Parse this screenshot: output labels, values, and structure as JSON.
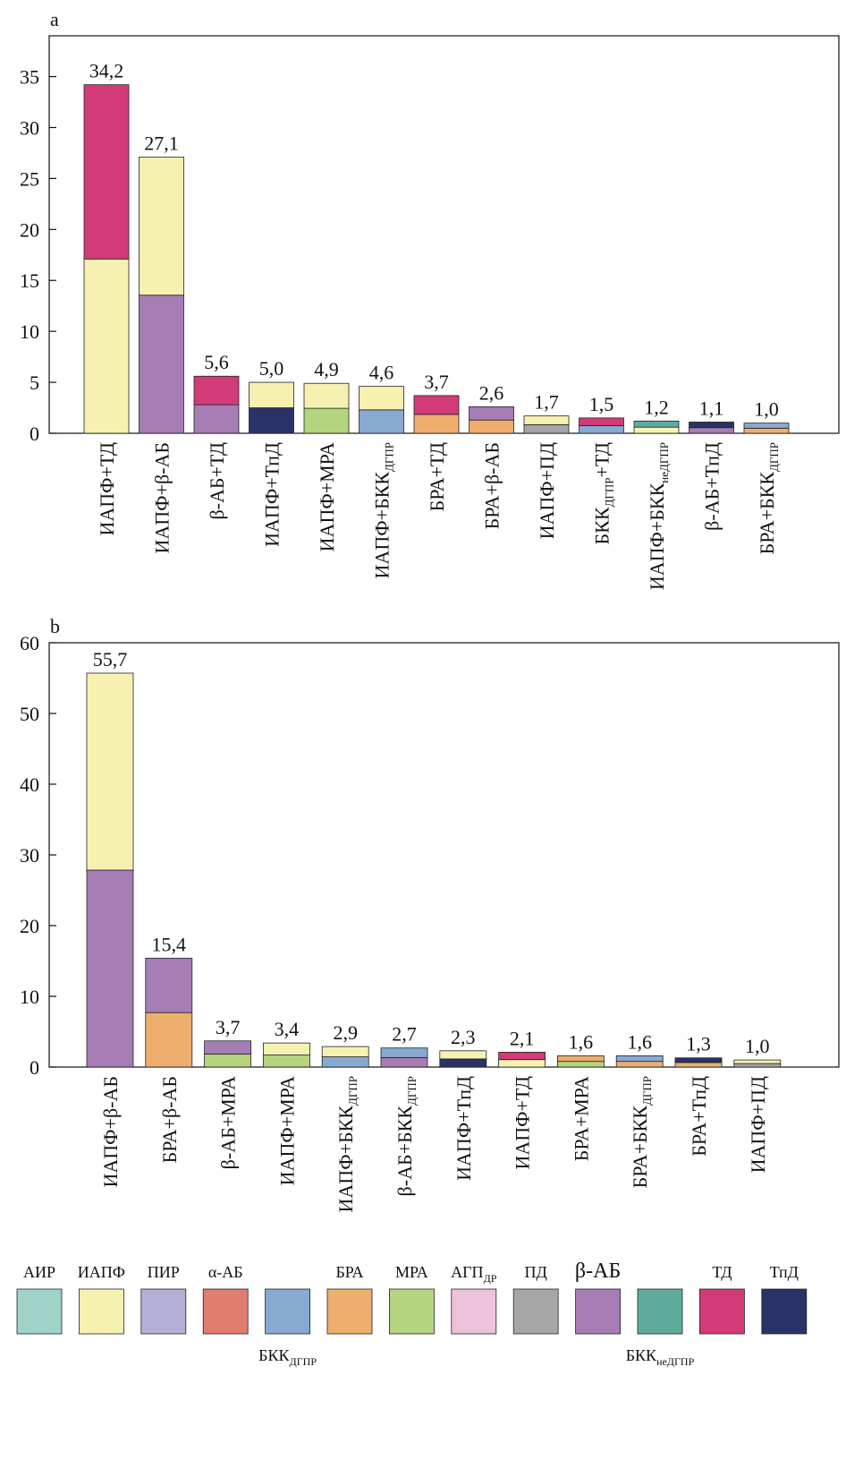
{
  "colors": {
    "АИР": "#9fd3c7",
    "ИАПФ": "#f6f1b0",
    "ПИР": "#b3afd6",
    "α-АБ": "#e07d6e",
    "БКК_ДГПР": "#88a9d0",
    "БРА": "#eeae6d",
    "МРА": "#b4d47e",
    "АГП_ДР": "#ecc3da",
    "ПД": "#a6a6a6",
    "β-АБ": "#a67db5",
    "БКК_неДГПР": "#5eab9e",
    "ТД": "#d23a78",
    "ТпД": "#2a3368"
  },
  "chart_data": [
    {
      "type": "bar",
      "stacked": true,
      "panel_label": "a",
      "ylim": [
        0,
        39
      ],
      "yticks": [
        0,
        5,
        10,
        15,
        20,
        25,
        30,
        35
      ],
      "categories": [
        {
          "parts": [
            {
              "t": "ИАПФ+ТД"
            }
          ],
          "total": "34,2",
          "value": 34.2,
          "segments": [
            {
              "drug": "ИАПФ",
              "value": 17.1
            },
            {
              "drug": "ТД",
              "value": 17.1
            }
          ]
        },
        {
          "parts": [
            {
              "t": "ИАПФ+β-АБ"
            }
          ],
          "total": "27,1",
          "value": 27.1,
          "segments": [
            {
              "drug": "β-АБ",
              "value": 13.55
            },
            {
              "drug": "ИАПФ",
              "value": 13.55
            }
          ]
        },
        {
          "parts": [
            {
              "t": "β-АБ+ТД"
            }
          ],
          "total": "5,6",
          "value": 5.6,
          "segments": [
            {
              "drug": "β-АБ",
              "value": 2.8
            },
            {
              "drug": "ТД",
              "value": 2.8
            }
          ]
        },
        {
          "parts": [
            {
              "t": "ИАПФ+ТпД"
            }
          ],
          "total": "5,0",
          "value": 5.0,
          "segments": [
            {
              "drug": "ТпД",
              "value": 2.5
            },
            {
              "drug": "ИАПФ",
              "value": 2.5
            }
          ]
        },
        {
          "parts": [
            {
              "t": "ИАПФ+МРА"
            }
          ],
          "total": "4,9",
          "value": 4.9,
          "segments": [
            {
              "drug": "МРА",
              "value": 2.45
            },
            {
              "drug": "ИАПФ",
              "value": 2.45
            }
          ]
        },
        {
          "parts": [
            {
              "t": "ИАПФ+БКК"
            },
            {
              "t": "ДГПР",
              "sub": true
            }
          ],
          "total": "4,6",
          "value": 4.6,
          "segments": [
            {
              "drug": "БКК_ДГПР",
              "value": 2.3
            },
            {
              "drug": "ИАПФ",
              "value": 2.3
            }
          ]
        },
        {
          "parts": [
            {
              "t": "БРА+ТД"
            }
          ],
          "total": "3,7",
          "value": 3.7,
          "segments": [
            {
              "drug": "БРА",
              "value": 1.85
            },
            {
              "drug": "ТД",
              "value": 1.85
            }
          ]
        },
        {
          "parts": [
            {
              "t": "БРА+β-АБ"
            }
          ],
          "total": "2,6",
          "value": 2.6,
          "segments": [
            {
              "drug": "БРА",
              "value": 1.3
            },
            {
              "drug": "β-АБ",
              "value": 1.3
            }
          ]
        },
        {
          "parts": [
            {
              "t": "ИАПФ+ПД"
            }
          ],
          "total": "1,7",
          "value": 1.7,
          "segments": [
            {
              "drug": "ПД",
              "value": 0.85
            },
            {
              "drug": "ИАПФ",
              "value": 0.85
            }
          ]
        },
        {
          "parts": [
            {
              "t": "БКК"
            },
            {
              "t": "ДГПР",
              "sub": true
            },
            {
              "t": "+ТД"
            }
          ],
          "total": "1,5",
          "value": 1.5,
          "segments": [
            {
              "drug": "БКК_ДГПР",
              "value": 0.75
            },
            {
              "drug": "ТД",
              "value": 0.75
            }
          ]
        },
        {
          "parts": [
            {
              "t": "ИАПФ+БКК"
            },
            {
              "t": "неДГПР",
              "sub": true
            }
          ],
          "total": "1,2",
          "value": 1.2,
          "segments": [
            {
              "drug": "ИАПФ",
              "value": 0.6
            },
            {
              "drug": "БКК_неДГПР",
              "value": 0.6
            }
          ]
        },
        {
          "parts": [
            {
              "t": "β-АБ+ТпД"
            }
          ],
          "total": "1,1",
          "value": 1.1,
          "segments": [
            {
              "drug": "β-АБ",
              "value": 0.55
            },
            {
              "drug": "ТпД",
              "value": 0.55
            }
          ]
        },
        {
          "parts": [
            {
              "t": "БРА+БКК"
            },
            {
              "t": "ДГПР",
              "sub": true
            }
          ],
          "total": "1,0",
          "value": 1.0,
          "segments": [
            {
              "drug": "БРА",
              "value": 0.5
            },
            {
              "drug": "БКК_ДГПР",
              "value": 0.5
            }
          ]
        }
      ]
    },
    {
      "type": "bar",
      "stacked": true,
      "panel_label": "b",
      "ylim": [
        0,
        60
      ],
      "yticks": [
        0,
        10,
        20,
        30,
        40,
        50,
        60
      ],
      "categories": [
        {
          "parts": [
            {
              "t": "ИАПФ+β-АБ"
            }
          ],
          "total": "55,7",
          "value": 55.7,
          "segments": [
            {
              "drug": "β-АБ",
              "value": 27.85
            },
            {
              "drug": "ИАПФ",
              "value": 27.85
            }
          ]
        },
        {
          "parts": [
            {
              "t": "БРА+β-АБ"
            }
          ],
          "total": "15,4",
          "value": 15.4,
          "segments": [
            {
              "drug": "БРА",
              "value": 7.7
            },
            {
              "drug": "β-АБ",
              "value": 7.7
            }
          ]
        },
        {
          "parts": [
            {
              "t": "β-АБ+МРА"
            }
          ],
          "total": "3,7",
          "value": 3.7,
          "segments": [
            {
              "drug": "МРА",
              "value": 1.85
            },
            {
              "drug": "β-АБ",
              "value": 1.85
            }
          ]
        },
        {
          "parts": [
            {
              "t": "ИАПФ+МРА"
            }
          ],
          "total": "3,4",
          "value": 3.4,
          "segments": [
            {
              "drug": "МРА",
              "value": 1.7
            },
            {
              "drug": "ИАПФ",
              "value": 1.7
            }
          ]
        },
        {
          "parts": [
            {
              "t": "ИАПФ+БКК"
            },
            {
              "t": "ДГПР",
              "sub": true
            }
          ],
          "total": "2,9",
          "value": 2.9,
          "segments": [
            {
              "drug": "БКК_ДГПР",
              "value": 1.45
            },
            {
              "drug": "ИАПФ",
              "value": 1.45
            }
          ]
        },
        {
          "parts": [
            {
              "t": "β-АБ+БКК"
            },
            {
              "t": "ДГПР",
              "sub": true
            }
          ],
          "total": "2,7",
          "value": 2.7,
          "segments": [
            {
              "drug": "β-АБ",
              "value": 1.35
            },
            {
              "drug": "БКК_ДГПР",
              "value": 1.35
            }
          ]
        },
        {
          "parts": [
            {
              "t": "ИАПФ+ТпД"
            }
          ],
          "total": "2,3",
          "value": 2.3,
          "segments": [
            {
              "drug": "ТпД",
              "value": 1.15
            },
            {
              "drug": "ИАПФ",
              "value": 1.15
            }
          ]
        },
        {
          "parts": [
            {
              "t": "ИАПФ+ТД"
            }
          ],
          "total": "2,1",
          "value": 2.1,
          "segments": [
            {
              "drug": "ИАПФ",
              "value": 1.05
            },
            {
              "drug": "ТД",
              "value": 1.05
            }
          ]
        },
        {
          "parts": [
            {
              "t": "БРА+МРА"
            }
          ],
          "total": "1,6",
          "value": 1.6,
          "segments": [
            {
              "drug": "МРА",
              "value": 0.8
            },
            {
              "drug": "БРА",
              "value": 0.8
            }
          ]
        },
        {
          "parts": [
            {
              "t": "БРА+БКК"
            },
            {
              "t": "ДГПР",
              "sub": true
            }
          ],
          "total": "1,6",
          "value": 1.6,
          "segments": [
            {
              "drug": "БРА",
              "value": 0.8
            },
            {
              "drug": "БКК_ДГПР",
              "value": 0.8
            }
          ]
        },
        {
          "parts": [
            {
              "t": "БРА+ТпД"
            }
          ],
          "total": "1,3",
          "value": 1.3,
          "segments": [
            {
              "drug": "БРА",
              "value": 0.65
            },
            {
              "drug": "ТпД",
              "value": 0.65
            }
          ]
        },
        {
          "parts": [
            {
              "t": "ИАПФ+ПД"
            }
          ],
          "total": "1,0",
          "value": 1.0,
          "segments": [
            {
              "drug": "ПД",
              "value": 0.5
            },
            {
              "drug": "ИАПФ",
              "value": 0.5
            }
          ]
        }
      ]
    }
  ],
  "legend": [
    {
      "key": "АИР",
      "parts": [
        {
          "t": "АИР"
        }
      ],
      "row": "top"
    },
    {
      "key": "ИАПФ",
      "parts": [
        {
          "t": "ИАПФ"
        }
      ],
      "row": "top"
    },
    {
      "key": "ПИР",
      "parts": [
        {
          "t": "ПИР"
        }
      ],
      "row": "top"
    },
    {
      "key": "α-АБ",
      "parts": [
        {
          "t": "α-АБ"
        }
      ],
      "row": "top"
    },
    {
      "key": "БКК_ДГПР",
      "parts": [
        {
          "t": "БКК"
        },
        {
          "t": "ДГПР",
          "sub": true
        }
      ],
      "row": "bottom"
    },
    {
      "key": "БРА",
      "parts": [
        {
          "t": "БРА"
        }
      ],
      "row": "top"
    },
    {
      "key": "МРА",
      "parts": [
        {
          "t": "МРА"
        }
      ],
      "row": "top"
    },
    {
      "key": "АГП_ДР",
      "parts": [
        {
          "t": "АГП"
        },
        {
          "t": "ДР",
          "sub": true
        }
      ],
      "row": "top"
    },
    {
      "key": "ПД",
      "parts": [
        {
          "t": "ПД"
        }
      ],
      "row": "top"
    },
    {
      "key": "β-АБ",
      "parts": [
        {
          "t": "β-АБ"
        }
      ],
      "row": "top",
      "large": true
    },
    {
      "key": "БКК_неДГПР",
      "parts": [
        {
          "t": "БКК"
        },
        {
          "t": "неДГПР",
          "sub": true
        }
      ],
      "row": "bottom"
    },
    {
      "key": "ТД",
      "parts": [
        {
          "t": "ТД"
        }
      ],
      "row": "top"
    },
    {
      "key": "ТпД",
      "parts": [
        {
          "t": "ТпД"
        }
      ],
      "row": "top"
    }
  ]
}
